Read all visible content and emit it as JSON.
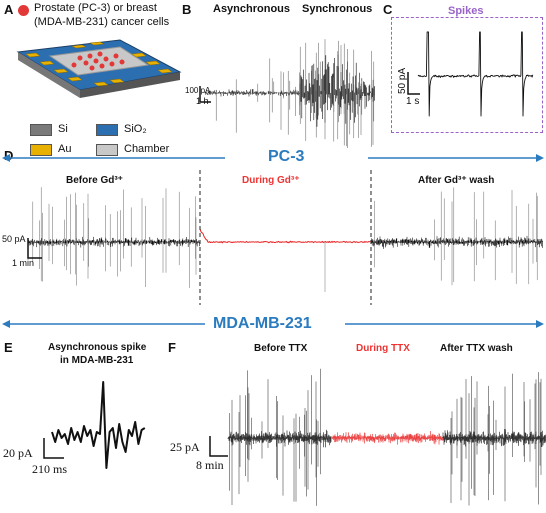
{
  "panels": {
    "A": {
      "letter": "A",
      "cells_label_line1": "Prostate (PC-3) or breast",
      "cells_label_line2": "(MDA-MB-231) cancer cells",
      "legend": [
        {
          "label": "Si",
          "color": "#7a7a7a"
        },
        {
          "label": "SiO₂",
          "color": "#2c6fb0"
        },
        {
          "label": "Au",
          "color": "#e8b000"
        },
        {
          "label": "Chamber",
          "color": "#c8c8c8"
        }
      ]
    },
    "B": {
      "letter": "B",
      "left_label": "Asynchronous",
      "right_label": "Synchronous",
      "scale_y": "100 pA",
      "scale_x": "1 h"
    },
    "C": {
      "letter": "C",
      "title": "Spikes",
      "scale_y": "50 pA",
      "scale_x": "1 s"
    },
    "D": {
      "letter": "D",
      "banner": "PC-3",
      "before": "Before Gd³⁺",
      "during": "During Gd³⁺",
      "after": "After Gd³⁺ wash",
      "scale_y": "50 pA",
      "scale_x": "1 min"
    },
    "MDA": {
      "banner": "MDA-MB-231"
    },
    "E": {
      "letter": "E",
      "title_line1": "Asynchronous spike",
      "title_line2": "in MDA-MB-231",
      "scale_y": "20 pA",
      "scale_x": "210 ms"
    },
    "F": {
      "letter": "F",
      "before": "Before TTX",
      "during": "During TTX",
      "after": "After TTX wash",
      "scale_y": "25 pA",
      "scale_x": "8 min"
    }
  },
  "colors": {
    "trace": "#111111",
    "during_trace": "#e82020",
    "banner_blue": "#2b7bbf",
    "spikes_purple": "#9a63c8"
  }
}
